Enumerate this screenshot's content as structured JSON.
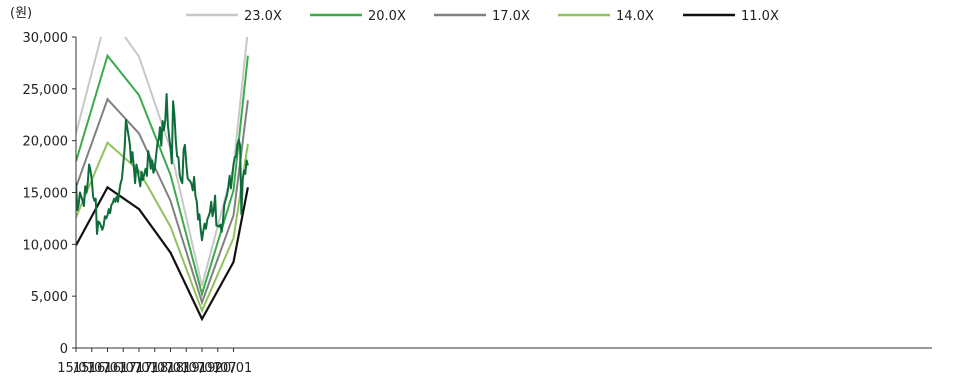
{
  "chart_data": {
    "type": "line",
    "unit_label": "(원)",
    "ylim": [
      0,
      30000
    ],
    "y_ticks": [
      "0",
      "5,000",
      "10,000",
      "15,000",
      "20,000",
      "25,000",
      "30,000"
    ],
    "y_tick_values": [
      0,
      5000,
      10000,
      15000,
      20000,
      25000,
      30000
    ],
    "x_ticks": [
      "15/01",
      "15/07",
      "16/01",
      "16/07",
      "17/01",
      "17/07",
      "18/01",
      "18/07",
      "19/01",
      "19/07",
      "20/01"
    ],
    "x_tick_months": [
      0,
      6,
      12,
      18,
      24,
      30,
      36,
      42,
      48,
      54,
      60
    ],
    "legend_position": "top",
    "grid": false,
    "bands": [
      {
        "name": "23.0X",
        "color": "#c8c8c8",
        "points": [
          [
            0,
            20700
          ],
          [
            12,
            32400
          ],
          [
            24,
            28100
          ],
          [
            36,
            19200
          ],
          [
            48,
            6000
          ],
          [
            60,
            17500
          ],
          [
            65.5,
            30700
          ]
        ]
      },
      {
        "name": "20.0X",
        "color": "#3aaa4a",
        "points": [
          [
            0,
            18000
          ],
          [
            12,
            28200
          ],
          [
            24,
            24400
          ],
          [
            36,
            16700
          ],
          [
            48,
            5200
          ],
          [
            60,
            15200
          ],
          [
            65.5,
            28200
          ]
        ]
      },
      {
        "name": "17.0X",
        "color": "#808080",
        "points": [
          [
            0,
            15500
          ],
          [
            12,
            24000
          ],
          [
            24,
            20700
          ],
          [
            36,
            14200
          ],
          [
            48,
            4400
          ],
          [
            60,
            12800
          ],
          [
            65.5,
            23900
          ]
        ]
      },
      {
        "name": "14.0X",
        "color": "#8fc45c",
        "points": [
          [
            0,
            12600
          ],
          [
            12,
            19800
          ],
          [
            24,
            17100
          ],
          [
            36,
            11700
          ],
          [
            48,
            3600
          ],
          [
            60,
            10600
          ],
          [
            65.5,
            19700
          ]
        ]
      },
      {
        "name": "11.0X",
        "color": "#111111",
        "points": [
          [
            0,
            9900
          ],
          [
            12,
            15500
          ],
          [
            24,
            13400
          ],
          [
            36,
            9200
          ],
          [
            48,
            2800
          ],
          [
            60,
            8300
          ],
          [
            65.5,
            15500
          ]
        ]
      }
    ],
    "price_series": {
      "color": "#0e6b3a",
      "points": [
        [
          0,
          16000
        ],
        [
          0.5,
          13300
        ],
        [
          1,
          13800
        ],
        [
          1.5,
          15000
        ],
        [
          2,
          14600
        ],
        [
          2.5,
          14200
        ],
        [
          3,
          13700
        ],
        [
          3.5,
          15600
        ],
        [
          4,
          15000
        ],
        [
          4.5,
          16000
        ],
        [
          5,
          17700
        ],
        [
          5.5,
          17200
        ],
        [
          6,
          16200
        ],
        [
          6.5,
          14600
        ],
        [
          7,
          14200
        ],
        [
          7.5,
          14400
        ],
        [
          8,
          11000
        ],
        [
          8.5,
          12200
        ],
        [
          9,
          12100
        ],
        [
          9.5,
          11800
        ],
        [
          10,
          11400
        ],
        [
          10.5,
          11800
        ],
        [
          11,
          12700
        ],
        [
          11.5,
          12500
        ],
        [
          12,
          12800
        ],
        [
          12.5,
          13400
        ],
        [
          13,
          13000
        ],
        [
          13.5,
          13800
        ],
        [
          14,
          14000
        ],
        [
          14.5,
          14400
        ],
        [
          15,
          14100
        ],
        [
          15.5,
          14600
        ],
        [
          16,
          14100
        ],
        [
          16.5,
          15100
        ],
        [
          17,
          15900
        ],
        [
          17.5,
          16300
        ],
        [
          18,
          17800
        ],
        [
          18.5,
          19200
        ],
        [
          19,
          22000
        ],
        [
          19.5,
          21300
        ],
        [
          20,
          20500
        ],
        [
          20.5,
          19700
        ],
        [
          21,
          17900
        ],
        [
          21.5,
          18900
        ],
        [
          22,
          17500
        ],
        [
          22.5,
          15900
        ],
        [
          23,
          17700
        ],
        [
          23.5,
          17100
        ],
        [
          24,
          16300
        ],
        [
          24.5,
          15600
        ],
        [
          25,
          17000
        ],
        [
          25.5,
          16200
        ],
        [
          26,
          16800
        ],
        [
          26.5,
          17300
        ],
        [
          27,
          16600
        ],
        [
          27.5,
          19000
        ],
        [
          28,
          18400
        ],
        [
          28.5,
          17300
        ],
        [
          29,
          18100
        ],
        [
          29.5,
          16900
        ],
        [
          30,
          17300
        ],
        [
          30.5,
          18600
        ],
        [
          31,
          19700
        ],
        [
          31.5,
          20100
        ],
        [
          32,
          21300
        ],
        [
          32.5,
          19500
        ],
        [
          33,
          21900
        ],
        [
          33.5,
          21000
        ],
        [
          34,
          22000
        ],
        [
          34.5,
          24500
        ],
        [
          35,
          21500
        ],
        [
          35.5,
          20300
        ],
        [
          36,
          19300
        ],
        [
          36.5,
          17800
        ],
        [
          37,
          23800
        ],
        [
          37.5,
          22500
        ],
        [
          38,
          20000
        ],
        [
          38.5,
          18500
        ],
        [
          39,
          18400
        ],
        [
          39.5,
          16700
        ],
        [
          40,
          16200
        ],
        [
          40.5,
          15900
        ],
        [
          41,
          19100
        ],
        [
          41.5,
          19600
        ],
        [
          42,
          17800
        ],
        [
          42.5,
          16400
        ],
        [
          43,
          16200
        ],
        [
          43.5,
          16100
        ],
        [
          44,
          15800
        ],
        [
          44.5,
          15200
        ],
        [
          45,
          16500
        ],
        [
          45.5,
          14700
        ],
        [
          46,
          14100
        ],
        [
          46.5,
          12400
        ],
        [
          47,
          12900
        ],
        [
          47.5,
          11400
        ],
        [
          48,
          10400
        ],
        [
          48.5,
          11300
        ],
        [
          49,
          12000
        ],
        [
          49.5,
          11500
        ],
        [
          50,
          12400
        ],
        [
          50.5,
          12700
        ],
        [
          51,
          13100
        ],
        [
          51.5,
          14100
        ],
        [
          52,
          12700
        ],
        [
          52.5,
          13300
        ],
        [
          53,
          14700
        ],
        [
          53.5,
          11800
        ],
        [
          54,
          11800
        ],
        [
          54.5,
          11700
        ],
        [
          55,
          11900
        ],
        [
          55.5,
          11200
        ],
        [
          56,
          12300
        ],
        [
          56.5,
          13800
        ],
        [
          57,
          14300
        ],
        [
          57.5,
          14700
        ],
        [
          58,
          15500
        ],
        [
          58.5,
          16600
        ],
        [
          59,
          15400
        ],
        [
          59.5,
          16500
        ],
        [
          60,
          17700
        ],
        [
          60.5,
          18400
        ],
        [
          61,
          18500
        ],
        [
          61.5,
          19600
        ],
        [
          62,
          20100
        ],
        [
          62.5,
          19500
        ],
        [
          63,
          12900
        ],
        [
          63.5,
          16200
        ],
        [
          64,
          17100
        ],
        [
          64.5,
          16800
        ],
        [
          65,
          18100
        ],
        [
          65.5,
          17600
        ]
      ]
    }
  }
}
